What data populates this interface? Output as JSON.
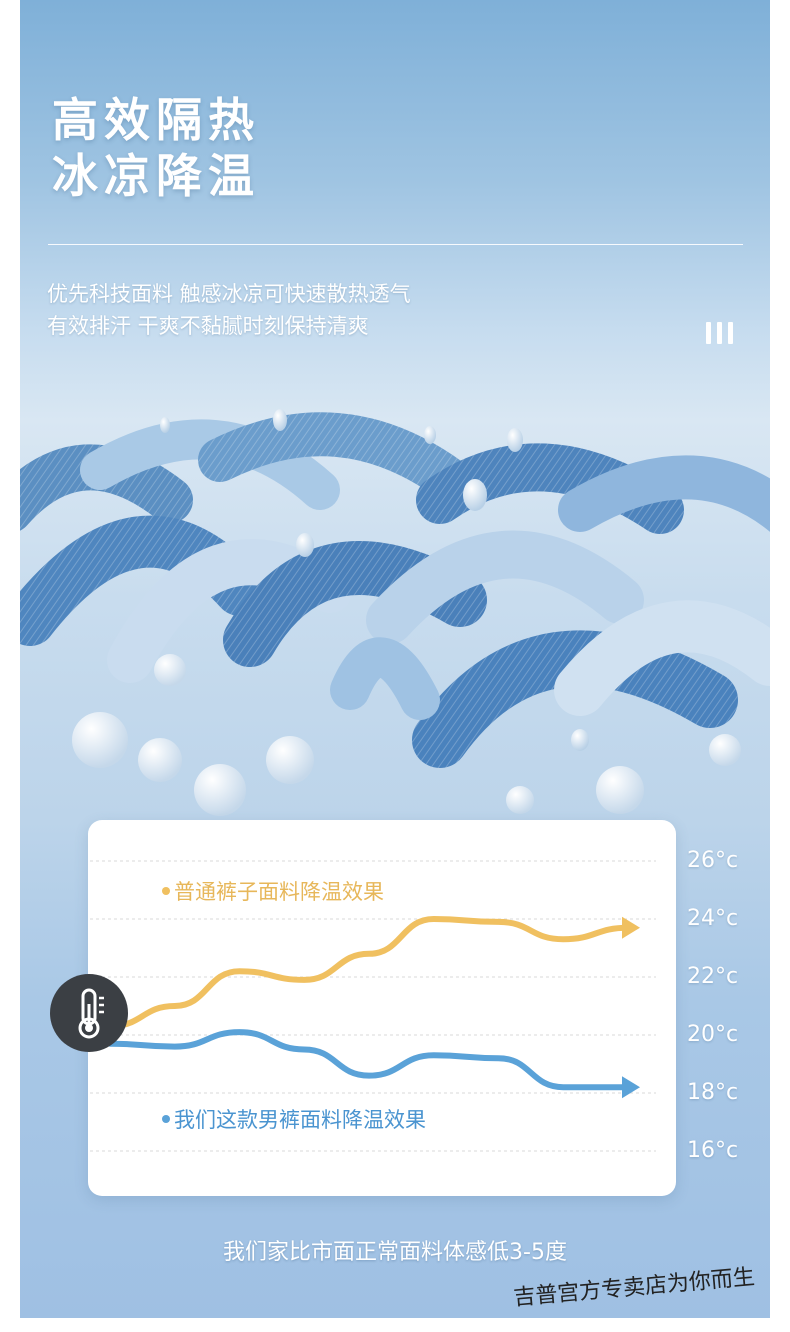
{
  "header": {
    "title_line1": "高效隔热",
    "title_line2": "冰凉降温",
    "subtitle_line1": "优先科技面料 触感冰凉可快速散热透气",
    "subtitle_line2": "有效排汗 干爽不黏腻时刻保持清爽"
  },
  "chart_data": {
    "type": "line",
    "y_unit": "°c",
    "y_ticks": [
      "26°c",
      "24°c",
      "22°c",
      "20°c",
      "18°c",
      "16°c"
    ],
    "ylim": [
      16,
      26
    ],
    "grid": true,
    "series": [
      {
        "name": "普通裤子面料降温效果",
        "color": "#f0c060",
        "x": [
          0,
          1,
          2,
          3,
          4,
          5,
          6,
          7,
          8
        ],
        "values": [
          20.3,
          21.0,
          22.2,
          21.9,
          22.8,
          24.0,
          23.9,
          23.3,
          23.7
        ]
      },
      {
        "name": "我们这款男裤面料降温效果",
        "color": "#5aa2d8",
        "x": [
          0,
          1,
          2,
          3,
          4,
          5,
          6,
          7,
          8
        ],
        "values": [
          19.7,
          19.6,
          20.1,
          19.5,
          18.6,
          19.3,
          19.2,
          18.2,
          18.2
        ]
      }
    ]
  },
  "icon": {
    "thermometer": "thermometer-icon"
  },
  "footer": {
    "text": "我们家比市面正常面料体感低3-5度"
  },
  "stamp": {
    "text": "吉普宫方专卖店为你而生"
  },
  "colors": {
    "warm_line": "#f0c060",
    "cool_line": "#5aa2d8",
    "panel_blue": "#9fc4e2"
  }
}
